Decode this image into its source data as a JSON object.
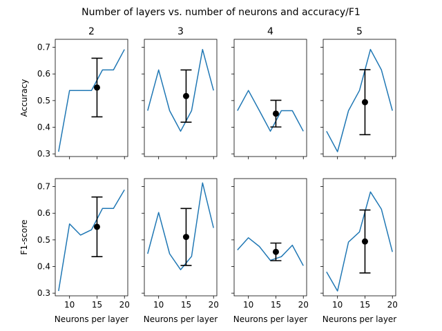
{
  "chart_data": {
    "type": "line",
    "title": "Number of layers vs. number of neurons and accuracy/F1",
    "columns": [
      "2",
      "3",
      "4",
      "5"
    ],
    "rows": [
      {
        "ylabel": "Accuracy",
        "ylim": [
          0.29,
          0.73
        ],
        "yticks": [
          0.3,
          0.4,
          0.5,
          0.6,
          0.7
        ],
        "panels": [
          {
            "x": [
              8,
              10,
              12,
              14,
              16,
              18,
              20
            ],
            "y": [
              0.308,
              0.538,
              0.538,
              0.538,
              0.615,
              0.615,
              0.692
            ],
            "mean": 0.549,
            "err": 0.11,
            "mean_x": 15
          },
          {
            "x": [
              8,
              10,
              12,
              14,
              16,
              18,
              20
            ],
            "y": [
              0.462,
              0.615,
              0.462,
              0.385,
              0.462,
              0.692,
              0.538
            ],
            "mean": 0.517,
            "err": 0.098,
            "mean_x": 15
          },
          {
            "x": [
              8,
              10,
              12,
              14,
              16,
              18,
              20
            ],
            "y": [
              0.462,
              0.538,
              0.462,
              0.385,
              0.462,
              0.462,
              0.385
            ],
            "mean": 0.451,
            "err": 0.05,
            "mean_x": 15
          },
          {
            "x": [
              8,
              10,
              12,
              14,
              16,
              18,
              20
            ],
            "y": [
              0.385,
              0.308,
              0.462,
              0.538,
              0.692,
              0.615,
              0.462
            ],
            "mean": 0.494,
            "err": 0.122,
            "mean_x": 15
          }
        ]
      },
      {
        "ylabel": "F1-score",
        "ylim": [
          0.29,
          0.73
        ],
        "yticks": [
          0.3,
          0.4,
          0.5,
          0.6,
          0.7
        ],
        "panels": [
          {
            "x": [
              8,
              10,
              12,
              14,
              16,
              18,
              20
            ],
            "y": [
              0.308,
              0.56,
              0.518,
              0.538,
              0.618,
              0.618,
              0.688
            ],
            "mean": 0.549,
            "err": 0.112,
            "mean_x": 15
          },
          {
            "x": [
              8,
              10,
              12,
              14,
              16,
              18,
              20
            ],
            "y": [
              0.448,
              0.603,
              0.448,
              0.388,
              0.438,
              0.714,
              0.545
            ],
            "mean": 0.511,
            "err": 0.107,
            "mean_x": 15
          },
          {
            "x": [
              8,
              10,
              12,
              14,
              16,
              18,
              20
            ],
            "y": [
              0.462,
              0.508,
              0.475,
              0.423,
              0.437,
              0.48,
              0.403
            ],
            "mean": 0.455,
            "err": 0.033,
            "mean_x": 15
          },
          {
            "x": [
              8,
              10,
              12,
              14,
              16,
              18,
              20
            ],
            "y": [
              0.38,
              0.308,
              0.492,
              0.53,
              0.68,
              0.615,
              0.455
            ],
            "mean": 0.494,
            "err": 0.118,
            "mean_x": 15
          }
        ]
      }
    ],
    "xlabel": "Neurons per layer",
    "xlim": [
      7.4,
      20.6
    ],
    "xticks": [
      10,
      15,
      20
    ]
  }
}
